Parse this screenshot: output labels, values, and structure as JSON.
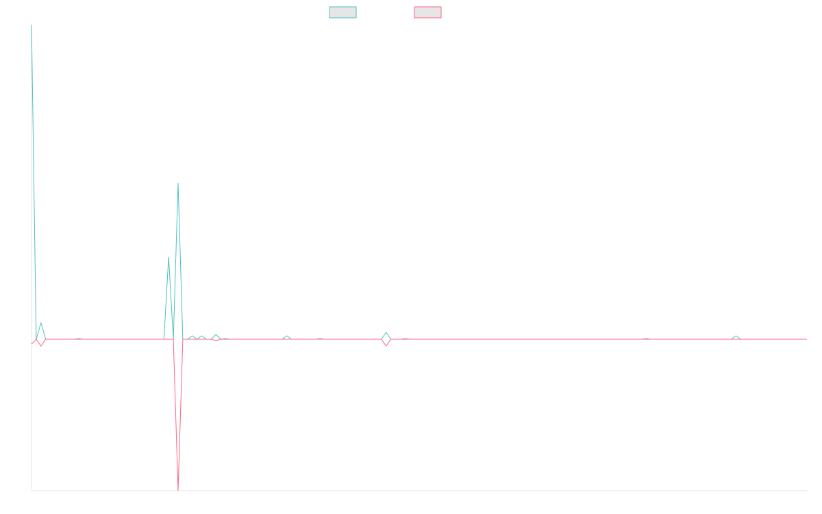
{
  "chart_data": {
    "type": "line",
    "ylim": [
      -221,
      459
    ],
    "series": [
      {
        "color": "#4bc0c0",
        "values": [
          459,
          0,
          24,
          0,
          0,
          0,
          0,
          0,
          0,
          0,
          1,
          0,
          0,
          0,
          0,
          0,
          0,
          0,
          0,
          0,
          0,
          0,
          0,
          0,
          0,
          0,
          0,
          0,
          0,
          120,
          0,
          228,
          0,
          0,
          5,
          0,
          5,
          0,
          0,
          7,
          0,
          1,
          0,
          0,
          0,
          0,
          0,
          0,
          0,
          0,
          0,
          0,
          0,
          0,
          5,
          0,
          0,
          0,
          0,
          0,
          0,
          1,
          0,
          0,
          0,
          0,
          0,
          0,
          0,
          0,
          0,
          0,
          0,
          0,
          0,
          10,
          0,
          0,
          0,
          1,
          0,
          0,
          0,
          0,
          0,
          0,
          0,
          0,
          0,
          0,
          0,
          0,
          0,
          0,
          0,
          0,
          0,
          0,
          0,
          0,
          0,
          0,
          0,
          0,
          0,
          0,
          0,
          0,
          0,
          0,
          0,
          0,
          0,
          0,
          0,
          0,
          0,
          0,
          0,
          0,
          0,
          0,
          0,
          0,
          0,
          0,
          0,
          0,
          0,
          0,
          1,
          0,
          0,
          0,
          0,
          0,
          0,
          0,
          0,
          0,
          0,
          0,
          0,
          0,
          0,
          0,
          0,
          0,
          0,
          5,
          0,
          0,
          0,
          0,
          0,
          0,
          0,
          0,
          0,
          0,
          0,
          0,
          0,
          0,
          0
        ]
      },
      {
        "color": "#ff6384",
        "values": [
          -7,
          0,
          -10,
          0,
          0,
          0,
          0,
          0,
          0,
          0,
          0,
          0,
          0,
          0,
          0,
          0,
          0,
          0,
          0,
          0,
          0,
          0,
          0,
          0,
          0,
          0,
          0,
          0,
          0,
          0,
          0,
          -221,
          0,
          0,
          0,
          0,
          0,
          0,
          0,
          -2,
          0,
          0,
          0,
          0,
          0,
          0,
          0,
          0,
          0,
          0,
          0,
          0,
          0,
          0,
          0,
          0,
          0,
          0,
          0,
          0,
          0,
          0,
          0,
          0,
          0,
          0,
          0,
          0,
          0,
          0,
          0,
          0,
          0,
          0,
          0,
          -10,
          0,
          0,
          0,
          0,
          0,
          0,
          0,
          0,
          0,
          0,
          0,
          0,
          0,
          0,
          0,
          0,
          0,
          0,
          0,
          0,
          0,
          0,
          0,
          0,
          0,
          0,
          0,
          0,
          0,
          0,
          0,
          0,
          0,
          0,
          0,
          0,
          0,
          0,
          0,
          0,
          0,
          0,
          0,
          0,
          0,
          0,
          0,
          0,
          0,
          0,
          0,
          0,
          0,
          0,
          0,
          0,
          0,
          0,
          0,
          0,
          0,
          0,
          0,
          0,
          0,
          0,
          0,
          0,
          0,
          0,
          0,
          0,
          0,
          0,
          0,
          0,
          0,
          0,
          0,
          0,
          0,
          0,
          0,
          0,
          0,
          0,
          0,
          0,
          0
        ]
      }
    ]
  }
}
